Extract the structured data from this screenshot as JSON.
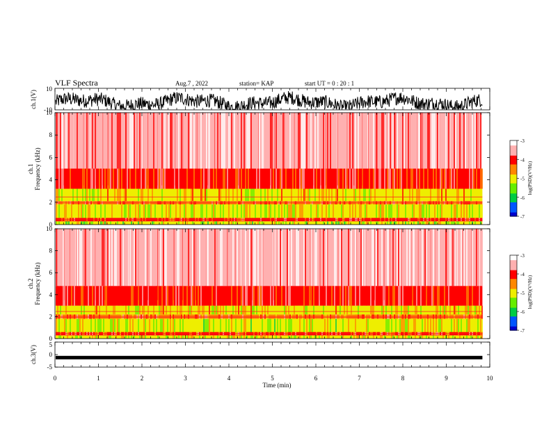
{
  "header": {
    "title": "VLF Spectra",
    "date": "Aug.7 , 2022",
    "station": "station= KAP",
    "start_ut": "start UT = 0 : 20 : 1"
  },
  "chart_data": [
    {
      "type": "line",
      "name": "ch1-waveform",
      "ylabel": "ch.1(V)",
      "ylim": [
        -10,
        10
      ],
      "yticks": [
        "10",
        "-10"
      ],
      "xlim": [
        0,
        10
      ],
      "color": "#000000",
      "description_level": "dense oscillating signal roughly between +9 and -9 V"
    },
    {
      "type": "heatmap",
      "name": "ch1-spectrogram",
      "ylabel": "ch.1\nFrequency (kHz)",
      "ylabel_line1": "ch.1",
      "ylabel_line2": "Frequency (kHz)",
      "ylim": [
        0,
        10
      ],
      "yticks": [
        "0",
        "2",
        "4",
        "6",
        "8",
        "10"
      ],
      "xlim": [
        0,
        10
      ],
      "data_end_min": 9.83,
      "colorbar": {
        "label": "log(PSD)(V²/Hz)",
        "ticks": [
          "-3",
          "-4",
          "-5",
          "-6",
          "-7"
        ],
        "range": [
          -7,
          -3
        ]
      },
      "bands": [
        {
          "f_low": 0.0,
          "f_high": 0.3,
          "level": -5.2
        },
        {
          "f_low": 0.3,
          "f_high": 0.6,
          "level": -4.2
        },
        {
          "f_low": 0.6,
          "f_high": 1.8,
          "level": -5.0
        },
        {
          "f_low": 1.8,
          "f_high": 2.1,
          "level": -4.3
        },
        {
          "f_low": 2.1,
          "f_high": 3.2,
          "level": -4.8
        },
        {
          "f_low": 3.2,
          "f_high": 5.0,
          "level": -4.0
        },
        {
          "f_low": 5.0,
          "f_high": 10.0,
          "level": -3.4
        }
      ]
    },
    {
      "type": "heatmap",
      "name": "ch2-spectrogram",
      "ylabel_line1": "ch.2",
      "ylabel_line2": "Frequency (kHz)",
      "ylim": [
        0,
        10
      ],
      "yticks": [
        "0",
        "2",
        "4",
        "6",
        "8",
        "10"
      ],
      "xlim": [
        0,
        10
      ],
      "data_end_min": 9.83,
      "colorbar": {
        "label": "log(PSD)(V²/Hz)",
        "ticks": [
          "-3",
          "-4",
          "-5",
          "-6",
          "-7"
        ],
        "range": [
          -7,
          -3
        ]
      },
      "bands": [
        {
          "f_low": 0.0,
          "f_high": 0.3,
          "level": -5.0
        },
        {
          "f_low": 0.3,
          "f_high": 0.6,
          "level": -4.2
        },
        {
          "f_low": 0.6,
          "f_high": 1.8,
          "level": -5.1
        },
        {
          "f_low": 1.8,
          "f_high": 2.2,
          "level": -4.3
        },
        {
          "f_low": 2.2,
          "f_high": 3.0,
          "level": -4.8
        },
        {
          "f_low": 3.0,
          "f_high": 4.8,
          "level": -4.0
        },
        {
          "f_low": 4.8,
          "f_high": 10.0,
          "level": -3.3
        }
      ]
    },
    {
      "type": "line",
      "name": "ch3-waveform",
      "ylabel": "ch.3(V)",
      "ylim": [
        -5,
        5
      ],
      "yticks": [
        "5",
        "0",
        "-5"
      ],
      "xlim": [
        0,
        10
      ],
      "xlabel": "Time (min)",
      "xticks": [
        "0",
        "1",
        "2",
        "3",
        "4",
        "5",
        "6",
        "7",
        "8",
        "9",
        "10"
      ],
      "level": -1.2,
      "color": "#000000"
    }
  ],
  "colors": {
    "colormap": [
      "#0000cc",
      "#0055ff",
      "#00cc44",
      "#66ee00",
      "#eeee00",
      "#ff8800",
      "#ff0000",
      "#ffb0b0",
      "#ffffff"
    ]
  }
}
